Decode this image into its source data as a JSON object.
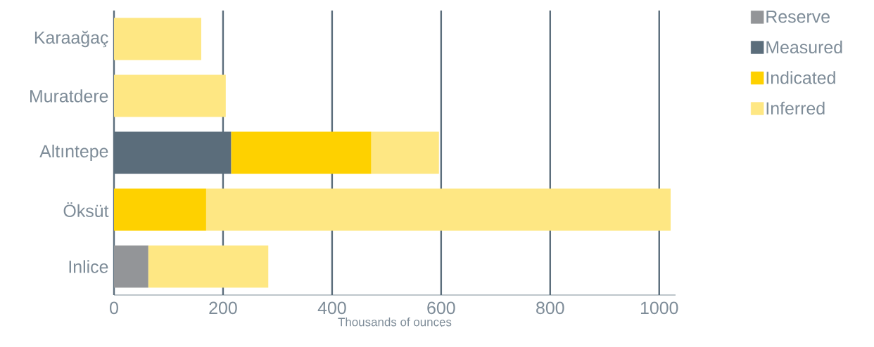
{
  "chart_data": {
    "type": "bar",
    "orientation": "horizontal",
    "stacked": true,
    "xlabel": "Thousands of ounces",
    "categories": [
      "Karaağaç",
      "Muratdere",
      "Altıntepe",
      "Öksüt",
      "Inlice"
    ],
    "series": [
      {
        "name": "Reserve",
        "color": "#939598",
        "values": [
          null,
          null,
          null,
          null,
          63
        ]
      },
      {
        "name": "Measured",
        "color": "#5b6d7b",
        "values": [
          null,
          null,
          215,
          null,
          null
        ]
      },
      {
        "name": "Indicated",
        "color": "#fed100",
        "values": [
          null,
          null,
          257,
          169,
          null
        ]
      },
      {
        "name": "Inferred",
        "color": "#fee783",
        "values": [
          160,
          205,
          124,
          852,
          220
        ]
      }
    ],
    "xlim": [
      0,
      1030
    ],
    "xticks": [
      0,
      200,
      400,
      600,
      800,
      1000
    ],
    "grid": "x",
    "legend": "right"
  }
}
